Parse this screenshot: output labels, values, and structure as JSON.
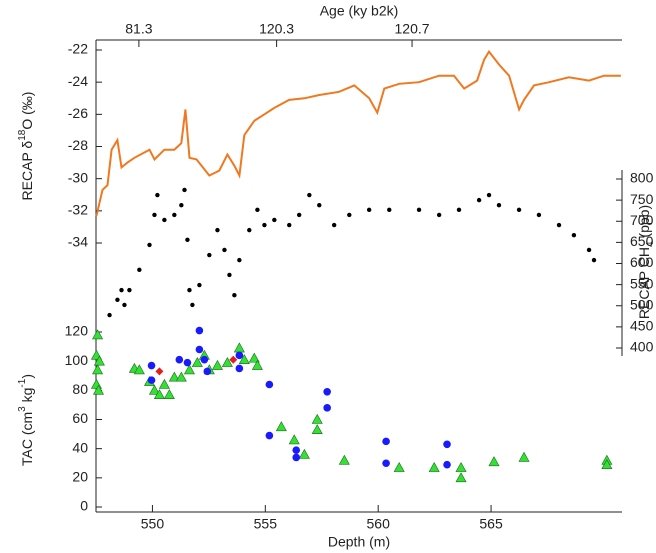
{
  "chart_data": [
    {
      "type": "line",
      "x2_label": "Age (ky b2k)",
      "x2ticks": [
        {
          "value": 549.4,
          "label": "81.3"
        },
        {
          "value": 555.5,
          "label": "120.3"
        },
        {
          "value": 561.5,
          "label": "120.7"
        }
      ],
      "xlim": [
        547.5,
        570.8
      ],
      "y_label": "RECAP δ",
      "y_label_sup": "18",
      "y_label_end": "O (‰)",
      "ylim": [
        -34,
        -22
      ],
      "yticks": [
        -22,
        -24,
        -26,
        -28,
        -30,
        -32,
        -34
      ],
      "series": [
        {
          "color": "#f07820",
          "x": [
            547.52,
            547.79,
            548.01,
            548.19,
            548.45,
            548.63,
            548.89,
            549.2,
            549.87,
            550.09,
            550.53,
            550.97,
            551.28,
            551.46,
            551.64,
            551.95,
            552.52,
            552.96,
            553.32,
            553.63,
            553.85,
            554.07,
            554.51,
            554.96,
            555.4,
            556.06,
            556.73,
            557.39,
            558.27,
            558.94,
            559.6,
            559.96,
            560.27,
            560.93,
            561.81,
            562.7,
            563.36,
            563.81,
            564.38,
            564.69,
            564.91,
            565.35,
            565.8,
            566.24,
            566.46,
            566.9,
            567.57,
            568.45,
            569.34,
            570.0,
            570.75
          ],
          "values": [
            -32.3,
            -30.7,
            -30.4,
            -28.2,
            -27.6,
            -29.3,
            -29.0,
            -28.7,
            -28.2,
            -28.8,
            -28.2,
            -28.2,
            -27.8,
            -25.7,
            -28.7,
            -28.8,
            -29.8,
            -29.5,
            -28.5,
            -29.2,
            -29.8,
            -27.3,
            -26.4,
            -26.0,
            -25.6,
            -25.1,
            -25.0,
            -24.8,
            -24.6,
            -24.2,
            -25.0,
            -25.9,
            -24.4,
            -24.1,
            -24.0,
            -23.6,
            -23.6,
            -24.4,
            -23.9,
            -22.6,
            -22.1,
            -22.9,
            -23.6,
            -25.7,
            -25.1,
            -24.2,
            -24.0,
            -23.7,
            -23.9,
            -23.6,
            -23.6
          ]
        }
      ]
    },
    {
      "type": "scatter",
      "xlim": [
        547.5,
        570.8
      ],
      "y_label": "RECAP CH",
      "y_label_sub": "4",
      "y_label_end": " (ppb)",
      "ylim": [
        400,
        800
      ],
      "yticks": [
        400,
        450,
        500,
        550,
        600,
        650,
        700,
        750,
        800
      ],
      "series": [
        {
          "color": "#000000",
          "marker": "circle",
          "x": [
            548.1,
            548.45,
            548.63,
            548.76,
            548.98,
            549.42,
            549.87,
            550.09,
            550.22,
            550.53,
            550.97,
            551.28,
            551.42,
            551.55,
            551.64,
            551.77,
            552.08,
            552.52,
            552.88,
            553.19,
            553.41,
            553.63,
            553.85,
            554.29,
            554.65,
            554.96,
            555.4,
            556.06,
            556.5,
            556.95,
            557.39,
            558.05,
            558.72,
            559.6,
            560.49,
            561.81,
            562.7,
            563.58,
            564.47,
            564.91,
            565.35,
            566.24,
            567.12,
            568.01,
            568.67,
            569.34,
            569.56
          ],
          "values": [
            478,
            514,
            537,
            502,
            537,
            585,
            644,
            715,
            762,
            703,
            715,
            738,
            774,
            656,
            537,
            502,
            549,
            620,
            679,
            632,
            573,
            525,
            608,
            679,
            727,
            691,
            703,
            691,
            715,
            762,
            738,
            691,
            715,
            727,
            727,
            727,
            715,
            727,
            750,
            762,
            738,
            727,
            715,
            691,
            667,
            632,
            608
          ]
        }
      ]
    },
    {
      "type": "scatter",
      "xlim": [
        547.5,
        570.8
      ],
      "xticks": [
        550,
        555,
        560,
        565
      ],
      "x_label": "Depth (m)",
      "y_label": "TAC (cm",
      "y_label_sup": "3",
      "y_label_mid": " kg",
      "y_label_sup2": "-1",
      "y_label_end": ")",
      "ylim": [
        0,
        120
      ],
      "yticks": [
        0,
        20,
        40,
        60,
        80,
        100,
        120
      ],
      "series": [
        {
          "color": "#33e033",
          "marker": "triangle",
          "x": [
            547.57,
            547.52,
            547.57,
            547.52,
            547.61,
            547.65,
            549.2,
            549.42,
            549.87,
            550.09,
            550.31,
            550.53,
            550.75,
            550.97,
            551.28,
            551.64,
            551.99,
            552.3,
            552.52,
            552.88,
            553.32,
            553.85,
            554.07,
            554.51,
            554.65,
            555.71,
            556.28,
            556.73,
            557.3,
            557.3,
            558.5,
            560.93,
            562.48,
            563.67,
            563.67,
            565.13,
            566.46,
            570.13,
            570.13
          ],
          "values": [
            118,
            104,
            94,
            84,
            80,
            100,
            95,
            94,
            86,
            80,
            77,
            84,
            77,
            89,
            89,
            94,
            99,
            104,
            94,
            97,
            99,
            109,
            101,
            102,
            97,
            55,
            46,
            36,
            60,
            53,
            32,
            27,
            27,
            20,
            27,
            31,
            34,
            32,
            29
          ]
        },
        {
          "color": "#1a1aff",
          "marker": "circle",
          "x": [
            549.96,
            549.96,
            551.19,
            551.55,
            552.08,
            552.08,
            552.3,
            552.43,
            553.85,
            553.85,
            555.18,
            555.18,
            556.37,
            556.37,
            557.74,
            557.74,
            560.35,
            560.35,
            563.05,
            563.05
          ],
          "values": [
            97,
            87,
            101,
            99,
            121,
            108,
            101,
            93,
            104,
            95,
            84,
            49,
            39,
            34,
            79,
            68,
            45,
            30,
            43,
            29
          ]
        },
        {
          "color": "#e02020",
          "marker": "diamond",
          "x": [
            550.31,
            553.58
          ],
          "values": [
            93,
            101
          ]
        }
      ]
    }
  ]
}
